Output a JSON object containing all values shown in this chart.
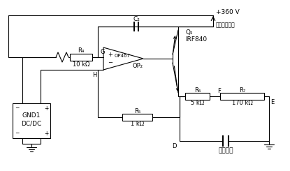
{
  "bg_color": "#ffffff",
  "line_color": "#000000",
  "fs": 6.5,
  "lw": 0.8,
  "labels": {
    "C2": "C₂",
    "R4": "R₄",
    "R4_val": "10 kΩ",
    "R5": "R₅",
    "R5_val": "1 kΩ",
    "R6": "R₆",
    "R6_val": "5 kΩ",
    "R7": "R₇",
    "R7_val": "170 kΩ",
    "op_name": "OP467",
    "op_sub": "OP₂",
    "G": "G",
    "H": "H",
    "F": "F",
    "D": "D",
    "E": "E",
    "Q2": "Q₂",
    "Q2_type": "IRF840",
    "voltage": "+360 V",
    "power_label": "功率放大部分",
    "piezo": "压电陶瓷",
    "dcdc_line1": "GND1",
    "dcdc_line2": "DC/DC",
    "plus": "+",
    "minus": "−"
  }
}
